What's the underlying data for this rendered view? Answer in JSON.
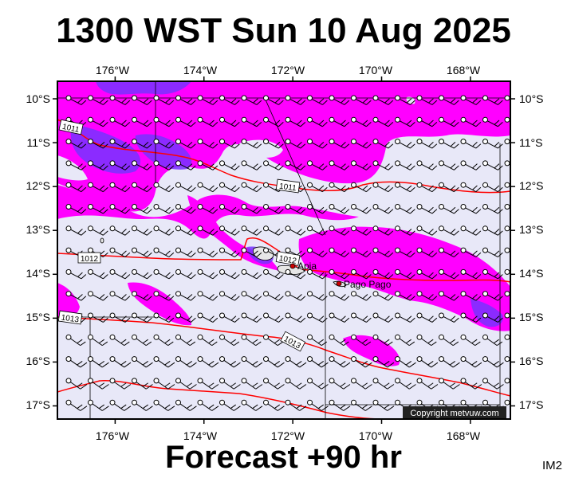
{
  "header": {
    "title": "1300 WST Sun 10 Aug 2025"
  },
  "footer": {
    "forecast": "Forecast +90 hr",
    "model_code": "IM2"
  },
  "copyright": "Copyright metvuw.com",
  "map": {
    "lon_range": [
      -177.3,
      -167.1
    ],
    "lat_range": [
      -17.3,
      -9.6
    ],
    "top_lon_labels": [
      "176°W",
      "174°W",
      "172°W",
      "170°W",
      "168°W"
    ],
    "bottom_lon_labels": [
      "176°W",
      "174°W",
      "172°W",
      "170°W",
      "168°W"
    ],
    "left_lat_labels": [
      "10°S",
      "11°S",
      "12°S",
      "13°S",
      "14°S",
      "15°S",
      "16°S",
      "17°S"
    ],
    "right_lat_labels": [
      "10°S",
      "11°S",
      "12°S",
      "13°S",
      "14°S",
      "15°S",
      "16°S",
      "17°S"
    ],
    "lon_ticks": [
      -176,
      -174,
      -172,
      -170,
      -168
    ],
    "lat_ticks": [
      -10,
      -11,
      -12,
      -13,
      -14,
      -15,
      -16,
      -17
    ],
    "colors": {
      "background": "#e8e8f8",
      "rain_light": "#ff00ff",
      "rain_heavy": "#7733ff",
      "isobar": "#ff0000",
      "wind_barb": "#000000"
    },
    "isobar_labels": [
      "1011",
      "1011",
      "1012",
      "1012",
      "1013",
      "1013"
    ],
    "places": [
      {
        "name": "Apia",
        "lon": -171.8,
        "lat": -13.85
      },
      {
        "name": "Pago Pago",
        "lon": -170.7,
        "lat": -14.28
      }
    ]
  }
}
